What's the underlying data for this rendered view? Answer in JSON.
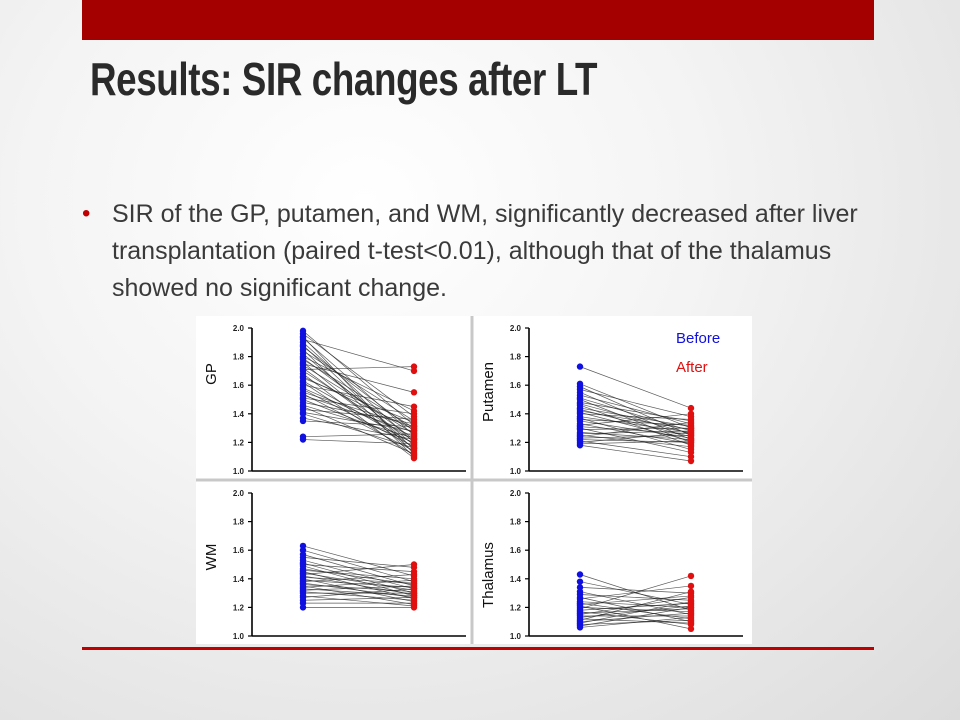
{
  "slide": {
    "title": "Results: SIR changes after LT",
    "bullet": "SIR of the GP, putamen, and WM, significantly decreased after liver transplantation (paired t-test<0.01), although that of the thalamus showed no significant change."
  },
  "legend": {
    "before": "Before",
    "after": "After"
  },
  "colors": {
    "accent": "#a50000",
    "rule": "#c00000",
    "before": "#1010e0",
    "after": "#e01010",
    "line": "#222222"
  },
  "chart_data": [
    {
      "type": "scatter",
      "ylabel": "GP",
      "ylim": [
        1.0,
        2.0
      ],
      "yticks": [
        "1.0",
        "1.2",
        "1.4",
        "1.6",
        "1.8",
        "2.0"
      ],
      "x": [
        "Before",
        "After"
      ],
      "before": [
        1.98,
        1.96,
        1.94,
        1.93,
        1.92,
        1.9,
        1.88,
        1.87,
        1.85,
        1.84,
        1.82,
        1.8,
        1.79,
        1.78,
        1.76,
        1.75,
        1.74,
        1.72,
        1.71,
        1.7,
        1.68,
        1.66,
        1.65,
        1.63,
        1.62,
        1.6,
        1.58,
        1.57,
        1.55,
        1.54,
        1.53,
        1.51,
        1.5,
        1.48,
        1.46,
        1.45,
        1.43,
        1.41,
        1.4,
        1.37,
        1.35,
        1.24,
        1.22
      ],
      "after": [
        1.32,
        1.38,
        1.12,
        1.25,
        1.7,
        1.2,
        1.15,
        1.28,
        1.1,
        1.35,
        1.18,
        1.42,
        1.22,
        1.3,
        1.13,
        1.55,
        1.26,
        1.16,
        1.73,
        1.21,
        1.09,
        1.29,
        1.34,
        1.19,
        1.11,
        1.45,
        1.24,
        1.17,
        1.31,
        1.14,
        1.27,
        1.4,
        1.2,
        1.33,
        1.23,
        1.12,
        1.36,
        1.28,
        1.16,
        1.22,
        1.31,
        1.26,
        1.19
      ]
    },
    {
      "type": "scatter",
      "ylabel": "Putamen",
      "ylim": [
        1.0,
        2.0
      ],
      "yticks": [
        "1.0",
        "1.2",
        "1.4",
        "1.6",
        "1.8",
        "2.0"
      ],
      "x": [
        "Before",
        "After"
      ],
      "before": [
        1.73,
        1.61,
        1.59,
        1.57,
        1.55,
        1.53,
        1.51,
        1.5,
        1.48,
        1.47,
        1.46,
        1.44,
        1.43,
        1.42,
        1.41,
        1.4,
        1.38,
        1.37,
        1.36,
        1.35,
        1.33,
        1.32,
        1.31,
        1.3,
        1.29,
        1.27,
        1.26,
        1.25,
        1.24,
        1.23,
        1.22,
        1.21,
        1.2,
        1.19,
        1.18
      ],
      "after": [
        1.44,
        1.3,
        1.25,
        1.38,
        1.22,
        1.33,
        1.28,
        1.2,
        1.35,
        1.26,
        1.18,
        1.31,
        1.24,
        1.29,
        1.21,
        1.36,
        1.27,
        1.15,
        1.32,
        1.23,
        1.19,
        1.4,
        1.26,
        1.13,
        1.3,
        1.22,
        1.28,
        1.17,
        1.34,
        1.25,
        1.2,
        1.1,
        1.27,
        1.21,
        1.07
      ]
    },
    {
      "type": "scatter",
      "ylabel": "WM",
      "ylim": [
        1.0,
        2.0
      ],
      "yticks": [
        "1.0",
        "1.2",
        "1.4",
        "1.6",
        "1.8",
        "2.0"
      ],
      "x": [
        "Before",
        "After"
      ],
      "before": [
        1.63,
        1.6,
        1.57,
        1.55,
        1.53,
        1.51,
        1.5,
        1.49,
        1.47,
        1.46,
        1.45,
        1.44,
        1.43,
        1.42,
        1.41,
        1.4,
        1.39,
        1.38,
        1.37,
        1.36,
        1.35,
        1.34,
        1.33,
        1.32,
        1.31,
        1.3,
        1.28,
        1.27,
        1.25,
        1.23,
        1.2
      ],
      "after": [
        1.42,
        1.38,
        1.35,
        1.48,
        1.33,
        1.3,
        1.45,
        1.28,
        1.36,
        1.4,
        1.26,
        1.32,
        1.5,
        1.29,
        1.37,
        1.24,
        1.34,
        1.43,
        1.27,
        1.31,
        1.22,
        1.39,
        1.28,
        1.35,
        1.25,
        1.3,
        1.21,
        1.33,
        1.27,
        1.23,
        1.2
      ]
    },
    {
      "type": "scatter",
      "ylabel": "Thalamus",
      "ylim": [
        1.0,
        2.0
      ],
      "yticks": [
        "1.0",
        "1.2",
        "1.4",
        "1.6",
        "1.8",
        "2.0"
      ],
      "x": [
        "Before",
        "After"
      ],
      "before": [
        1.43,
        1.38,
        1.34,
        1.31,
        1.29,
        1.27,
        1.26,
        1.24,
        1.23,
        1.22,
        1.21,
        1.2,
        1.19,
        1.18,
        1.17,
        1.16,
        1.15,
        1.14,
        1.13,
        1.12,
        1.11,
        1.1,
        1.09,
        1.08,
        1.07,
        1.06
      ],
      "after": [
        1.18,
        1.22,
        1.3,
        1.15,
        1.25,
        1.1,
        1.35,
        1.2,
        1.12,
        1.28,
        1.05,
        1.17,
        1.42,
        1.23,
        1.08,
        1.19,
        1.27,
        1.14,
        1.21,
        1.09,
        1.31,
        1.16,
        1.24,
        1.11,
        1.2,
        1.13
      ]
    }
  ]
}
